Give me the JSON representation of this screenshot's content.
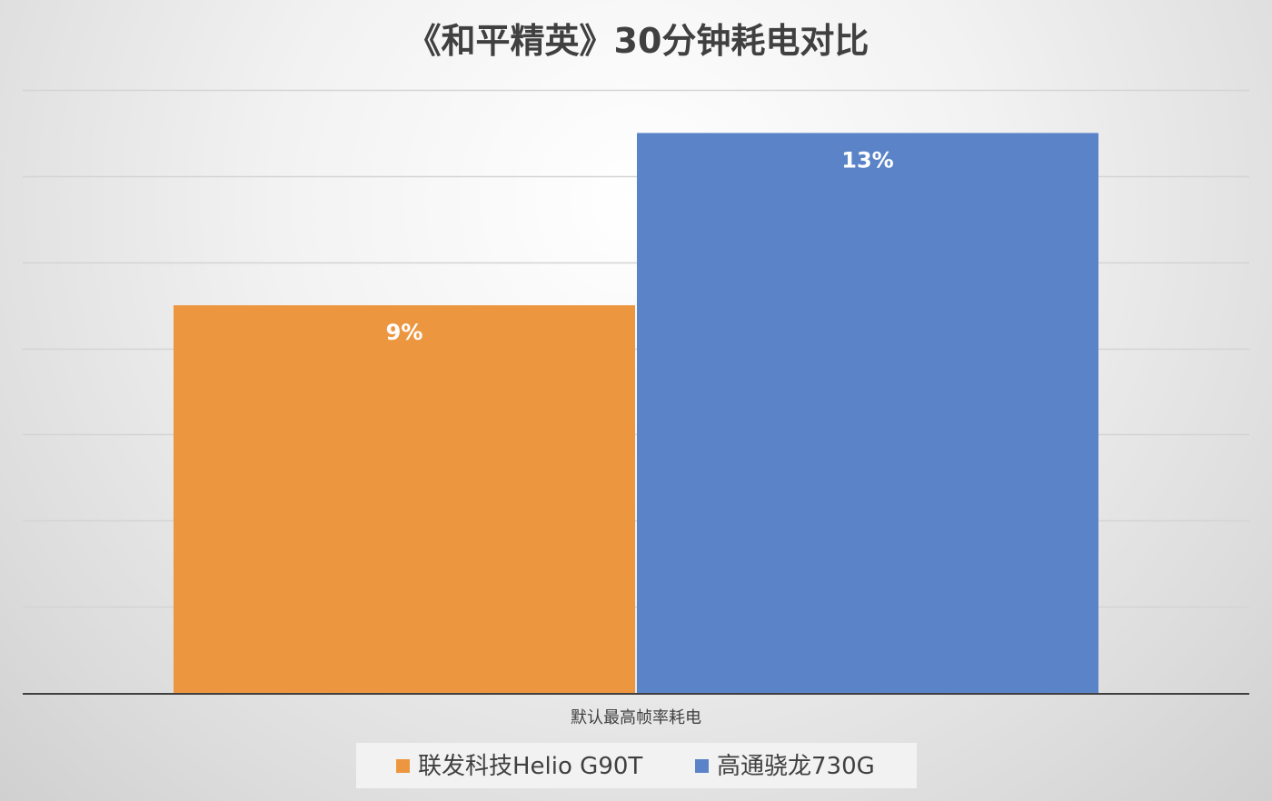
{
  "chart_data": {
    "type": "bar",
    "title": "《和平精英》30分钟耗电对比",
    "categories": [
      "默认最高帧率耗电"
    ],
    "series": [
      {
        "name": "联发科技Helio G90T",
        "values": [
          9
        ],
        "value_labels": [
          "9%"
        ],
        "color": "#ED9640"
      },
      {
        "name": "高通骁龙730G",
        "values": [
          13
        ],
        "value_labels": [
          "13%"
        ],
        "color": "#5B84C8"
      }
    ],
    "ylim": [
      0,
      14
    ],
    "grid": true,
    "legend_position": "bottom",
    "unit": "%"
  }
}
